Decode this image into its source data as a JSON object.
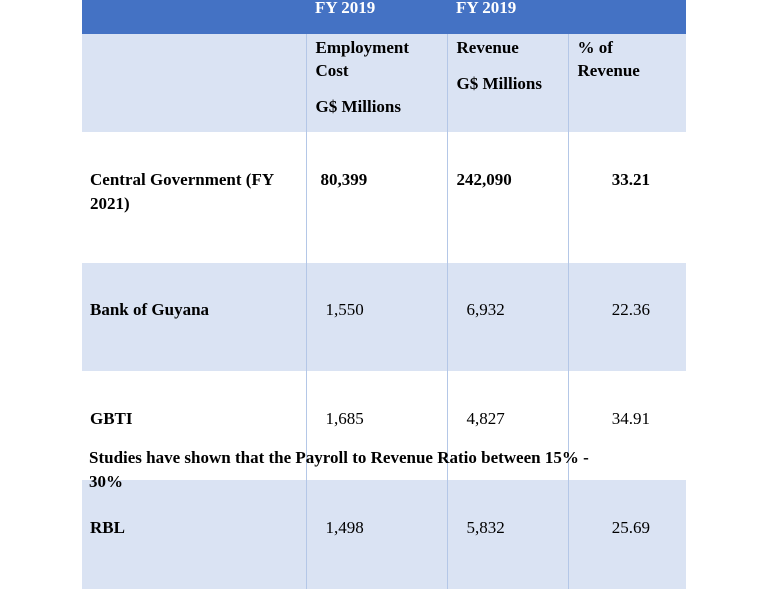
{
  "header": {
    "fy1": "FY 2019",
    "fy2": "FY 2019",
    "col2_line1": "Employment",
    "col2_line2": "Cost",
    "col2_line3": "G$ Millions",
    "col3_line1": "Revenue",
    "col3_line2": "G$ Millions",
    "col4_line1": "% of",
    "col4_line2": "Revenue"
  },
  "rows": [
    {
      "entity_line1": "Central Government (FY",
      "entity_line2": "2021)",
      "employment_cost": "80,399",
      "revenue": "242,090",
      "pct": "33.21"
    },
    {
      "entity_line1": "Bank of Guyana",
      "entity_line2": "",
      "employment_cost": "1,550",
      "revenue": "6,932",
      "pct": "22.36"
    },
    {
      "entity_line1": "GBTI",
      "entity_line2": "",
      "employment_cost": "1,685",
      "revenue": "4,827",
      "pct": "34.91"
    },
    {
      "entity_line1": "RBL",
      "entity_line2": "",
      "employment_cost": "1,498",
      "revenue": "5,832",
      "pct": "25.69"
    }
  ],
  "footer_line1": "Studies have shown that the Payroll to Revenue Ratio between 15% -",
  "footer_line2": "30%",
  "colors": {
    "header_dark": "#4472c4",
    "band_light": "#dae3f3",
    "divider": "#b4c7e7"
  }
}
